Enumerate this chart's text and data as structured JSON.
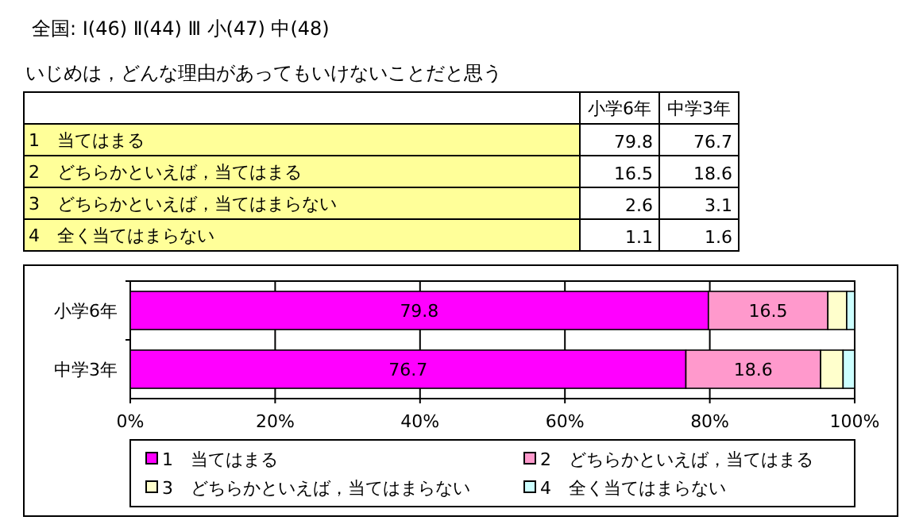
{
  "chart_data": [
    {
      "type": "other",
      "title": "全国: Ⅰ(46)  Ⅱ(44)  Ⅲ 小(47)  中(48)",
      "subtitle": "いじめは，どんな理由があってもいけないことだと思う",
      "annotations": [
        "小学6年",
        "中学3年",
        "1　当てはまる",
        "79.8",
        "76.7",
        "2　どちらかといえば，当てはまる",
        "16.5",
        "18.6",
        "3　どちらかといえば，当てはまらない",
        "2.6",
        "3.1",
        "4　全く当てはまらない",
        "1.1",
        "1.6"
      ]
    },
    {
      "type": "bar",
      "orientation": "horizontal",
      "stacked": true,
      "categories": [
        "小学6年",
        "中学3年"
      ],
      "series": [
        {
          "name": "1　当てはまる",
          "color": "#ff00ff",
          "values": [
            79.8,
            76.7
          ],
          "value_labels": [
            "79.8",
            "76.7"
          ]
        },
        {
          "name": "2　どちらかといえば，当てはまる",
          "color": "#ff99cc",
          "values": [
            16.5,
            18.6
          ],
          "value_labels": [
            "16.5",
            "18.6"
          ]
        },
        {
          "name": "3　どちらかといえば，当てはまらない",
          "color": "#ffffcc",
          "values": [
            2.6,
            3.1
          ]
        },
        {
          "name": "4　全く当てはまらない",
          "color": "#ccffff",
          "values": [
            1.1,
            1.6
          ]
        }
      ],
      "xlim": [
        0,
        100
      ],
      "xticks": [
        {
          "value": 0,
          "label": "0%"
        },
        {
          "value": 20,
          "label": "20%"
        },
        {
          "value": 40,
          "label": "40%"
        },
        {
          "value": 60,
          "label": "60%"
        },
        {
          "value": 80,
          "label": "80%"
        },
        {
          "value": 100,
          "label": "100%"
        }
      ],
      "grid": "x",
      "legend": "bottom"
    }
  ]
}
